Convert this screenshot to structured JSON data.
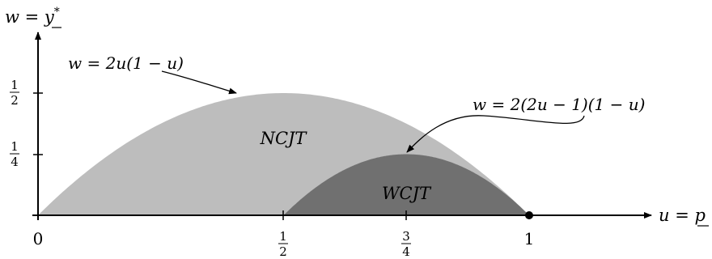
{
  "axes": {
    "y_label_left": "w = ",
    "y_label_right": "y",
    "y_label_sup": "*",
    "x_label_left": "u = ",
    "x_label_right": "p"
  },
  "x_ticks": [
    {
      "value": 0,
      "label": "0"
    },
    {
      "value": 0.5,
      "num": "1",
      "den": "2"
    },
    {
      "value": 0.75,
      "num": "3",
      "den": "4"
    },
    {
      "value": 1,
      "label": "1"
    }
  ],
  "y_ticks": [
    {
      "value": 0.5,
      "num": "1",
      "den": "2"
    },
    {
      "value": 0.25,
      "num": "1",
      "den": "4"
    }
  ],
  "regions": {
    "outer": {
      "label": "NCJT",
      "color": "#bdbdbd"
    },
    "inner": {
      "label": "WCJT",
      "color": "#707070"
    }
  },
  "annotations": {
    "outer_curve": "w = 2u(1 − u)",
    "inner_curve": "w = 2(2u − 1)(1 − u)"
  }
}
